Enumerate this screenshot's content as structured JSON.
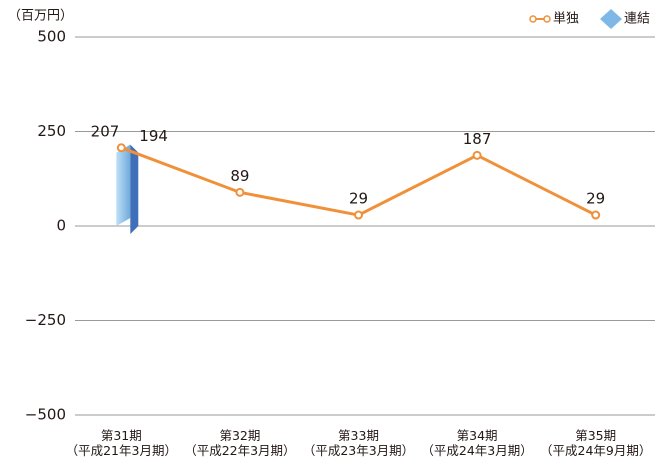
{
  "chart_data": {
    "type": "line",
    "y_unit_label": "（百万円）",
    "categories": [
      "第31期\n（平成21年3月期）",
      "第32期\n（平成22年3月期）",
      "第33期\n（平成23年3月期）",
      "第34期\n（平成24年3月期）",
      "第35期\n（平成24年9月期）"
    ],
    "series": [
      {
        "name": "単独",
        "color": "#f0913a",
        "kind": "line",
        "values": [
          207,
          89,
          29,
          187,
          29
        ]
      },
      {
        "name": "連結",
        "color": "#7fb8e6",
        "kind": "bar",
        "values": [
          194,
          null,
          null,
          null,
          null
        ]
      }
    ],
    "ylim": [
      -500,
      500
    ],
    "yticks": [
      {
        "value": -500,
        "label": "−500"
      },
      {
        "value": -250,
        "label": "−250"
      },
      0,
      250,
      500
    ],
    "grid": true,
    "legend": "top-right"
  }
}
